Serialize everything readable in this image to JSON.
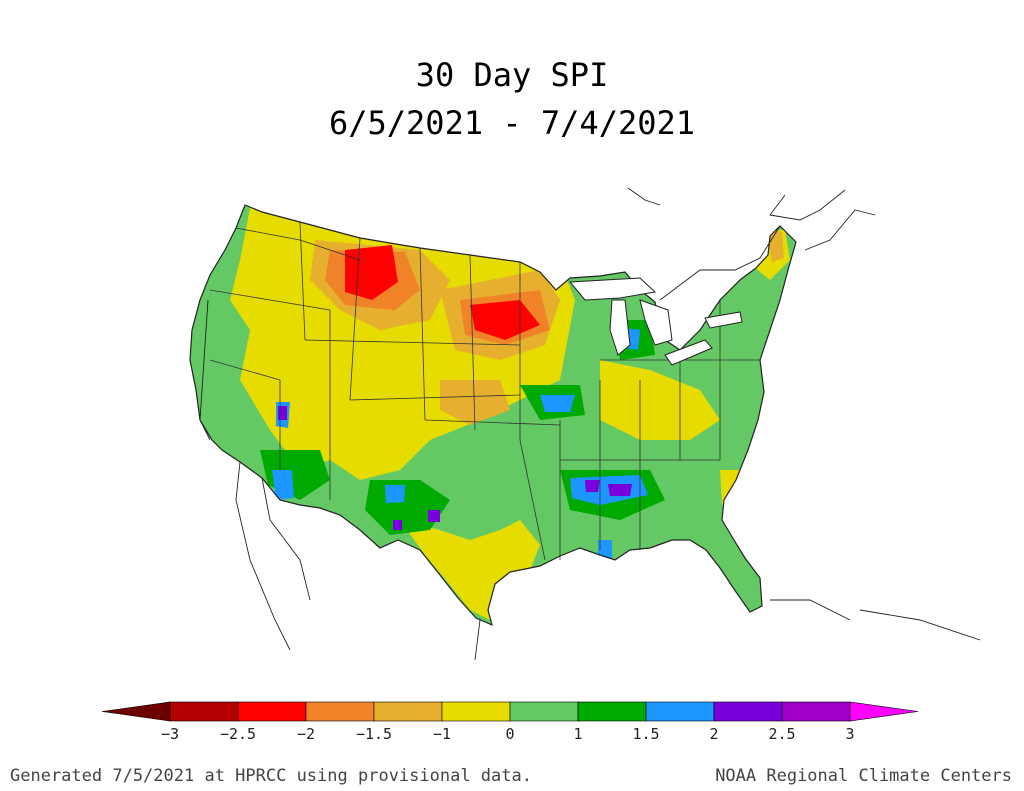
{
  "title": {
    "line1": "30 Day SPI",
    "line2": "6/5/2021 - 7/4/2021"
  },
  "footer": {
    "left": "Generated 7/5/2021 at HPRCC using provisional data.",
    "right": "NOAA Regional Climate Centers"
  },
  "colorbar": {
    "ticks": [
      "-3",
      "-2.5",
      "-2",
      "-1.5",
      "-1",
      "0",
      "1",
      "1.5",
      "2",
      "2.5",
      "3"
    ],
    "bins": [
      {
        "from": -3.0,
        "to": -2.5,
        "color": "#b30000"
      },
      {
        "from": -2.5,
        "to": -2.0,
        "color": "#ff0000"
      },
      {
        "from": -2.0,
        "to": -1.5,
        "color": "#f08228"
      },
      {
        "from": -1.5,
        "to": -1.0,
        "color": "#e6af2d"
      },
      {
        "from": -1.0,
        "to": 0.0,
        "color": "#e6dc00"
      },
      {
        "from": 0.0,
        "to": 1.0,
        "color": "#64c864"
      },
      {
        "from": 1.0,
        "to": 1.5,
        "color": "#00aa00"
      },
      {
        "from": 1.5,
        "to": 2.0,
        "color": "#1e96ff"
      },
      {
        "from": 2.0,
        "to": 2.5,
        "color": "#7800dc"
      },
      {
        "from": 2.5,
        "to": 3.0,
        "color": "#a000c8"
      }
    ],
    "under_color": "#6e0000",
    "over_color": "#ff00ff"
  },
  "map": {
    "base_color": "#64c864",
    "outline_color": "#333333"
  }
}
